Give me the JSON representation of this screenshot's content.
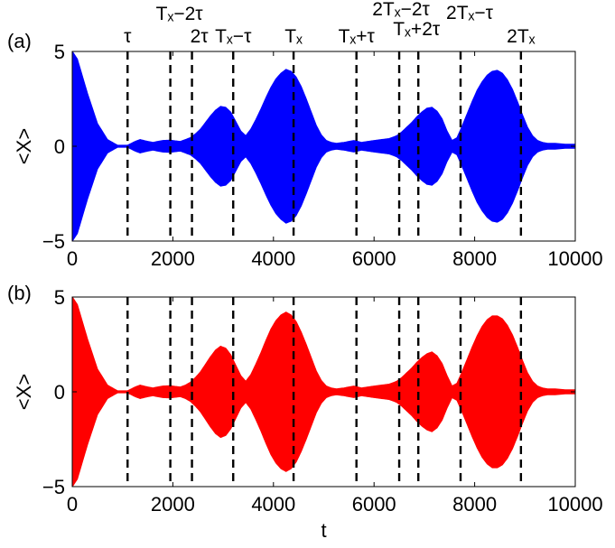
{
  "chart_data": [
    {
      "type": "area",
      "panel_label": "(a)",
      "color": "#0000ff",
      "xlabel": "",
      "ylabel": "<X>",
      "xlim": [
        0,
        10000
      ],
      "ylim": [
        -5,
        5
      ],
      "xticks": [
        0,
        2000,
        4000,
        6000,
        8000,
        10000
      ],
      "yticks": [
        -5,
        0,
        5
      ],
      "series": [
        {
          "envelope_x": [
            0,
            100,
            300,
            500,
            700,
            900,
            1100,
            1250,
            1350,
            1450,
            1600,
            1800,
            1950,
            2050,
            2150,
            2250,
            2350,
            2450,
            2550,
            2650,
            2750,
            2850,
            2950,
            3050,
            3150,
            3250,
            3350,
            3450,
            3550,
            3650,
            3750,
            3850,
            3950,
            4050,
            4150,
            4250,
            4350,
            4450,
            4550,
            4650,
            4750,
            4850,
            4950,
            5050,
            5150,
            5250,
            5400,
            5600,
            5750,
            5950,
            6150,
            6300,
            6450,
            6550,
            6650,
            6750,
            6850,
            6950,
            7050,
            7150,
            7250,
            7350,
            7450,
            7550,
            7650,
            7750,
            7850,
            7950,
            8050,
            8150,
            8250,
            8350,
            8450,
            8550,
            8650,
            8750,
            8850,
            8950,
            9050,
            9150,
            9250,
            9350,
            9450,
            9600,
            9800,
            10000
          ],
          "envelope_y": [
            5.0,
            4.6,
            2.8,
            1.2,
            0.35,
            0.05,
            0.05,
            0.25,
            0.35,
            0.28,
            0.2,
            0.3,
            0.32,
            0.28,
            0.25,
            0.35,
            0.45,
            0.65,
            0.9,
            1.25,
            1.6,
            1.9,
            2.1,
            2.05,
            1.8,
            1.3,
            0.8,
            0.55,
            0.9,
            1.4,
            1.95,
            2.55,
            3.1,
            3.55,
            3.85,
            4.05,
            3.95,
            3.65,
            3.15,
            2.5,
            1.8,
            1.1,
            0.6,
            0.3,
            0.2,
            0.15,
            0.2,
            0.3,
            0.2,
            0.28,
            0.35,
            0.4,
            0.55,
            0.75,
            1.0,
            1.25,
            1.55,
            1.8,
            2.0,
            2.05,
            1.85,
            1.45,
            0.8,
            0.3,
            0.45,
            1.05,
            1.7,
            2.35,
            2.95,
            3.4,
            3.75,
            3.95,
            4.0,
            3.85,
            3.5,
            3.0,
            2.35,
            1.65,
            1.0,
            0.55,
            0.3,
            0.2,
            0.15,
            0.15,
            0.1,
            0.1
          ]
        }
      ],
      "annotations": [
        {
          "x": 1100,
          "label": "τ"
        },
        {
          "x": 1950,
          "label": "Tₓ−2τ"
        },
        {
          "x": 2380,
          "label": "2τ"
        },
        {
          "x": 3200,
          "label": "Tₓ−τ"
        },
        {
          "x": 4400,
          "label": "Tₓ"
        },
        {
          "x": 5650,
          "label": "Tₓ+τ"
        },
        {
          "x": 6500,
          "label": "2Tₓ−2τ"
        },
        {
          "x": 6880,
          "label": "Tₓ+2τ"
        },
        {
          "x": 7720,
          "label": "2Tₓ−τ"
        },
        {
          "x": 8920,
          "label": "2Tₓ"
        }
      ]
    },
    {
      "type": "area",
      "panel_label": "(b)",
      "color": "#ff0000",
      "xlabel": "t",
      "ylabel": "<X>",
      "xlim": [
        0,
        10000
      ],
      "ylim": [
        -5,
        5
      ],
      "xticks": [
        0,
        2000,
        4000,
        6000,
        8000,
        10000
      ],
      "yticks": [
        -5,
        0,
        5
      ],
      "series": [
        {
          "envelope_x": [
            0,
            100,
            300,
            500,
            700,
            900,
            1100,
            1250,
            1350,
            1450,
            1600,
            1800,
            1950,
            2050,
            2150,
            2250,
            2350,
            2450,
            2550,
            2650,
            2750,
            2850,
            2950,
            3050,
            3150,
            3250,
            3350,
            3450,
            3550,
            3650,
            3750,
            3850,
            3950,
            4050,
            4150,
            4250,
            4350,
            4450,
            4550,
            4650,
            4750,
            4850,
            4950,
            5050,
            5150,
            5250,
            5400,
            5600,
            5750,
            5950,
            6150,
            6300,
            6450,
            6550,
            6650,
            6750,
            6850,
            6950,
            7050,
            7150,
            7250,
            7350,
            7450,
            7550,
            7650,
            7750,
            7850,
            7950,
            8050,
            8150,
            8250,
            8350,
            8450,
            8550,
            8650,
            8750,
            8850,
            8950,
            9050,
            9150,
            9250,
            9350,
            9450,
            9600,
            9800,
            10000
          ],
          "envelope_y": [
            5.0,
            4.6,
            2.8,
            1.2,
            0.35,
            0.05,
            0.05,
            0.25,
            0.35,
            0.28,
            0.2,
            0.3,
            0.32,
            0.28,
            0.25,
            0.35,
            0.5,
            0.75,
            1.05,
            1.45,
            1.85,
            2.2,
            2.4,
            2.3,
            1.95,
            1.4,
            0.85,
            0.55,
            0.9,
            1.45,
            2.05,
            2.7,
            3.3,
            3.75,
            4.05,
            4.2,
            4.05,
            3.7,
            3.15,
            2.5,
            1.8,
            1.1,
            0.6,
            0.3,
            0.2,
            0.15,
            0.2,
            0.3,
            0.2,
            0.28,
            0.35,
            0.4,
            0.55,
            0.75,
            1.0,
            1.25,
            1.55,
            1.8,
            2.0,
            2.1,
            1.9,
            1.5,
            0.85,
            0.3,
            0.45,
            1.05,
            1.7,
            2.35,
            2.95,
            3.45,
            3.8,
            4.0,
            4.0,
            3.85,
            3.5,
            3.0,
            2.35,
            1.65,
            1.0,
            0.55,
            0.3,
            0.2,
            0.15,
            0.15,
            0.1,
            0.1
          ]
        }
      ],
      "annotations": [
        {
          "x": 1100,
          "label": ""
        },
        {
          "x": 1950,
          "label": ""
        },
        {
          "x": 2380,
          "label": ""
        },
        {
          "x": 3200,
          "label": ""
        },
        {
          "x": 4400,
          "label": ""
        },
        {
          "x": 5650,
          "label": ""
        },
        {
          "x": 6500,
          "label": ""
        },
        {
          "x": 6880,
          "label": ""
        },
        {
          "x": 7720,
          "label": ""
        },
        {
          "x": 8920,
          "label": ""
        }
      ]
    }
  ]
}
